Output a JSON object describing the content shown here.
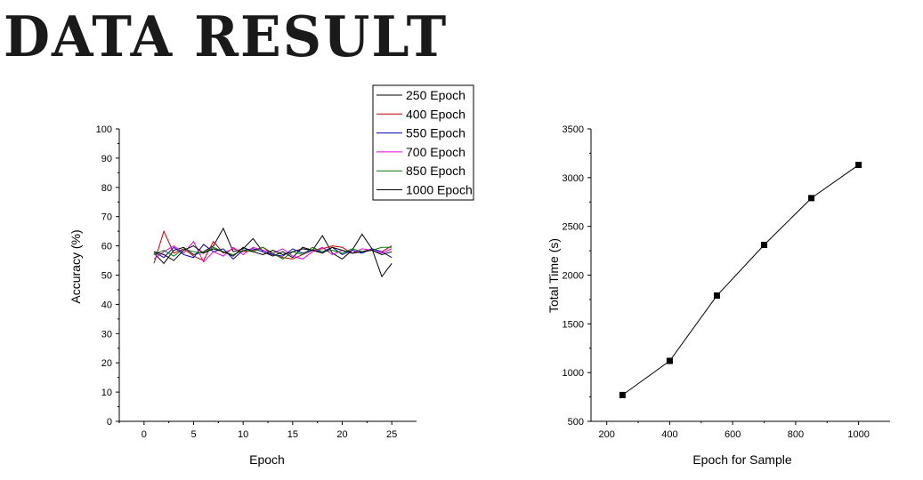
{
  "page": {
    "title": "DATA RESULT"
  },
  "chart_data": [
    {
      "type": "line",
      "xlabel": "Epoch",
      "ylabel": "Accuracy (%)",
      "xlim": [
        -2.5,
        27.5
      ],
      "ylim": [
        0,
        100
      ],
      "xticks": [
        0,
        5,
        10,
        15,
        20,
        25
      ],
      "yticks": [
        0,
        10,
        20,
        30,
        40,
        50,
        60,
        70,
        80,
        90,
        100
      ],
      "legend_position": "top-right",
      "x": [
        1,
        2,
        3,
        4,
        5,
        6,
        7,
        8,
        9,
        10,
        11,
        12,
        13,
        14,
        15,
        16,
        17,
        18,
        19,
        20,
        21,
        22,
        23,
        24,
        25
      ],
      "series": [
        {
          "name": "250 Epoch",
          "color": "#000000",
          "values": [
            57.5,
            54.0,
            58.5,
            59.5,
            57.0,
            58.0,
            60.0,
            66.0,
            58.0,
            59.0,
            62.5,
            58.0,
            56.5,
            58.0,
            56.0,
            59.5,
            58.5,
            63.5,
            57.5,
            55.5,
            58.5,
            64.0,
            59.0,
            49.5,
            54.0
          ]
        },
        {
          "name": "400 Epoch",
          "color": "#c00000",
          "values": [
            54.0,
            65.0,
            57.5,
            59.0,
            56.5,
            55.0,
            61.5,
            57.5,
            59.0,
            58.0,
            58.5,
            59.5,
            57.0,
            56.0,
            55.5,
            57.0,
            58.5,
            59.0,
            60.0,
            59.5,
            57.5,
            58.0,
            59.0,
            58.0,
            60.0
          ]
        },
        {
          "name": "550 Epoch",
          "color": "#0000c0",
          "values": [
            58.0,
            56.0,
            59.5,
            57.0,
            56.0,
            60.5,
            58.0,
            59.0,
            55.5,
            58.5,
            59.0,
            58.0,
            57.0,
            56.5,
            59.0,
            57.5,
            58.5,
            58.0,
            59.5,
            57.0,
            58.5,
            57.5,
            59.0,
            58.0,
            56.0
          ]
        },
        {
          "name": "700 Epoch",
          "color": "#e000e0",
          "values": [
            55.5,
            58.0,
            60.0,
            57.5,
            61.5,
            54.5,
            58.0,
            56.5,
            59.5,
            57.0,
            59.5,
            58.5,
            57.5,
            59.0,
            56.5,
            55.5,
            58.0,
            59.5,
            57.0,
            58.5,
            57.5,
            59.0,
            58.5,
            57.5,
            59.0
          ]
        },
        {
          "name": "850 Epoch",
          "color": "#008000",
          "values": [
            57.0,
            58.5,
            56.5,
            59.0,
            58.0,
            57.5,
            59.5,
            58.0,
            57.0,
            58.5,
            58.0,
            59.5,
            57.5,
            55.5,
            58.0,
            57.0,
            59.5,
            58.0,
            58.5,
            57.5,
            59.0,
            58.0,
            58.5,
            59.5,
            59.5
          ]
        },
        {
          "name": "1000 Epoch",
          "color": "#000000",
          "values": [
            58.0,
            57.0,
            55.0,
            58.5,
            60.0,
            57.5,
            59.0,
            58.0,
            56.5,
            59.5,
            58.0,
            57.0,
            58.5,
            57.0,
            58.0,
            59.0,
            58.5,
            57.5,
            59.5,
            58.5,
            57.5,
            58.0,
            58.5,
            57.0,
            58.0
          ]
        }
      ]
    },
    {
      "type": "line",
      "xlabel": "Epoch for Sample",
      "ylabel": "Total Time (s)",
      "xlim": [
        150,
        1100
      ],
      "ylim": [
        500,
        3500
      ],
      "xticks": [
        200,
        400,
        600,
        800,
        1000
      ],
      "yticks": [
        500,
        1000,
        1500,
        2000,
        2500,
        3000,
        3500
      ],
      "marker": "square",
      "series": [
        {
          "color": "#000000",
          "x": [
            250,
            400,
            550,
            700,
            850,
            1000
          ],
          "values": [
            770,
            1120,
            1790,
            2310,
            2790,
            3130
          ]
        }
      ]
    }
  ]
}
